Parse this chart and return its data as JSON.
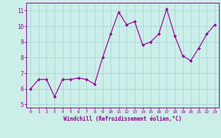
{
  "x": [
    0,
    1,
    2,
    3,
    4,
    5,
    6,
    7,
    8,
    9,
    10,
    11,
    12,
    13,
    14,
    15,
    16,
    17,
    18,
    19,
    20,
    21,
    22,
    23
  ],
  "y": [
    6.0,
    6.6,
    6.6,
    5.5,
    6.6,
    6.6,
    6.7,
    6.6,
    6.3,
    8.0,
    9.5,
    10.9,
    10.1,
    10.3,
    8.8,
    9.0,
    9.5,
    11.1,
    9.4,
    8.1,
    7.8,
    8.6,
    9.5,
    10.1
  ],
  "line_color": "#990099",
  "marker": "D",
  "marker_size": 2,
  "bg_color": "#cceee8",
  "grid_color": "#aad8d8",
  "xlabel": "Windchill (Refroidissement éolien,°C)",
  "xlabel_color": "#880088",
  "tick_color": "#880088",
  "ylim": [
    4.8,
    11.5
  ],
  "yticks": [
    5,
    6,
    7,
    8,
    9,
    10,
    11
  ],
  "xticks": [
    0,
    1,
    2,
    3,
    4,
    5,
    6,
    7,
    8,
    9,
    10,
    11,
    12,
    13,
    14,
    15,
    16,
    17,
    18,
    19,
    20,
    21,
    22,
    23
  ],
  "spine_color": "#880088",
  "figsize": [
    3.2,
    2.0
  ],
  "dpi": 100
}
